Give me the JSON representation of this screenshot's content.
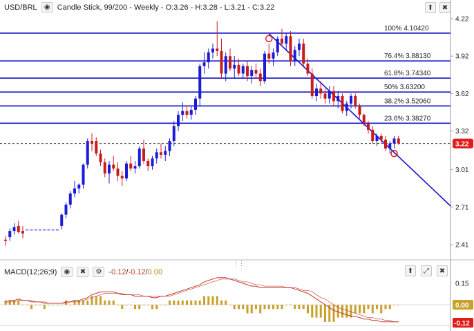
{
  "header": {
    "symbol": "USD/BRL",
    "info": "Candle Stick, 99/200 - Weekly - O:3.26 - H:3.28 - L:3.21 - C:3.22"
  },
  "macd": {
    "label": "MACD(12;26;9)",
    "v1": "-0.12",
    "v2": "-0.12",
    "v3": "0.00",
    "axis_ticks": [
      "0.15",
      "0.00",
      "-0.12"
    ],
    "badge_zero": "0.00",
    "badge_last": "-0.12",
    "colors": {
      "macd": "#c0392b",
      "signal": "#c0392b",
      "hist": "#c8a02a"
    }
  },
  "colors": {
    "up": "#1c1cd6",
    "down": "#c81c1c",
    "level": "#1414c8",
    "badge": "#e01c1c"
  },
  "chart_data": {
    "type": "candlestick",
    "y_ticks": [
      "4.22",
      "3.92",
      "3.62",
      "3.32",
      "3.01",
      "2.71",
      "2.41"
    ],
    "last_price": "3.22",
    "fib_levels": [
      {
        "pct": "100%",
        "value": "4.10420"
      },
      {
        "pct": "76.4%",
        "value": "3.88130"
      },
      {
        "pct": "61.8%",
        "value": "3.74340"
      },
      {
        "pct": "50%",
        "value": "3.63200"
      },
      {
        "pct": "38.2%",
        "value": "3.52060"
      },
      {
        "pct": "23.6%",
        "value": "3.38270"
      }
    ],
    "trendline": {
      "from": 4.1,
      "to": 2.72
    },
    "candles": [
      [
        2.45,
        2.48,
        2.4,
        2.44
      ],
      [
        2.47,
        2.54,
        2.44,
        2.52
      ],
      [
        2.52,
        2.58,
        2.49,
        2.55
      ],
      [
        2.56,
        2.6,
        2.5,
        2.51
      ],
      [
        2.52,
        2.56,
        2.46,
        2.5
      ],
      [
        2.53,
        2.53,
        2.53,
        2.53
      ],
      [
        2.53,
        2.53,
        2.53,
        2.53
      ],
      [
        2.53,
        2.53,
        2.53,
        2.53
      ],
      [
        2.53,
        2.53,
        2.53,
        2.53
      ],
      [
        2.53,
        2.53,
        2.53,
        2.53
      ],
      [
        2.53,
        2.53,
        2.53,
        2.53
      ],
      [
        2.53,
        2.53,
        2.53,
        2.53
      ],
      [
        2.53,
        2.53,
        2.53,
        2.53
      ],
      [
        2.56,
        2.66,
        2.53,
        2.65
      ],
      [
        2.65,
        2.75,
        2.62,
        2.73
      ],
      [
        2.73,
        2.84,
        2.7,
        2.82
      ],
      [
        2.82,
        2.92,
        2.79,
        2.86
      ],
      [
        2.86,
        2.9,
        2.82,
        2.89
      ],
      [
        2.89,
        3.06,
        2.86,
        3.05
      ],
      [
        3.05,
        3.26,
        3.02,
        3.24
      ],
      [
        3.24,
        3.3,
        3.16,
        3.22
      ],
      [
        3.24,
        3.27,
        3.12,
        3.14
      ],
      [
        3.14,
        3.17,
        3.04,
        3.07
      ],
      [
        3.07,
        3.1,
        2.95,
        2.98
      ],
      [
        2.98,
        3.08,
        2.9,
        3.05
      ],
      [
        3.05,
        3.12,
        3.0,
        3.02
      ],
      [
        3.02,
        3.07,
        2.92,
        2.96
      ],
      [
        2.96,
        3.0,
        2.88,
        2.94
      ],
      [
        2.94,
        3.08,
        2.92,
        3.06
      ],
      [
        3.06,
        3.12,
        3.0,
        3.02
      ],
      [
        3.02,
        3.08,
        2.98,
        3.04
      ],
      [
        3.04,
        3.2,
        3.02,
        3.18
      ],
      [
        3.18,
        3.25,
        3.06,
        3.08
      ],
      [
        3.08,
        3.1,
        3.0,
        3.04
      ],
      [
        3.04,
        3.12,
        3.01,
        3.1
      ],
      [
        3.1,
        3.18,
        3.06,
        3.15
      ],
      [
        3.15,
        3.22,
        3.1,
        3.13
      ],
      [
        3.13,
        3.2,
        3.08,
        3.16
      ],
      [
        3.16,
        3.26,
        3.12,
        3.24
      ],
      [
        3.24,
        3.4,
        3.2,
        3.36
      ],
      [
        3.36,
        3.48,
        3.32,
        3.45
      ],
      [
        3.45,
        3.55,
        3.4,
        3.48
      ],
      [
        3.48,
        3.52,
        3.42,
        3.45
      ],
      [
        3.45,
        3.52,
        3.41,
        3.49
      ],
      [
        3.49,
        3.6,
        3.45,
        3.58
      ],
      [
        3.58,
        3.86,
        3.52,
        3.84
      ],
      [
        3.84,
        3.95,
        3.78,
        3.87
      ],
      [
        3.87,
        3.98,
        3.82,
        3.95
      ],
      [
        3.95,
        4.02,
        3.9,
        3.98
      ],
      [
        3.98,
        4.2,
        3.92,
        3.96
      ],
      [
        3.96,
        4.06,
        3.74,
        3.78
      ],
      [
        3.78,
        3.95,
        3.72,
        3.92
      ],
      [
        3.92,
        3.98,
        3.8,
        3.82
      ],
      [
        3.82,
        3.92,
        3.74,
        3.85
      ],
      [
        3.85,
        3.9,
        3.76,
        3.78
      ],
      [
        3.78,
        3.86,
        3.74,
        3.84
      ],
      [
        3.84,
        3.88,
        3.72,
        3.76
      ],
      [
        3.76,
        3.84,
        3.7,
        3.81
      ],
      [
        3.81,
        3.86,
        3.74,
        3.78
      ],
      [
        3.78,
        3.82,
        3.68,
        3.72
      ],
      [
        3.72,
        3.96,
        3.7,
        3.94
      ],
      [
        3.94,
        4.02,
        3.86,
        3.9
      ],
      [
        3.9,
        3.98,
        3.84,
        3.95
      ],
      [
        3.95,
        4.08,
        3.92,
        4.06
      ],
      [
        4.06,
        4.14,
        4.0,
        4.02
      ],
      [
        4.02,
        4.1,
        3.96,
        4.08
      ],
      [
        4.08,
        4.12,
        3.84,
        3.88
      ],
      [
        3.88,
        4.0,
        3.84,
        3.97
      ],
      [
        3.97,
        4.06,
        3.92,
        4.02
      ],
      [
        4.02,
        4.06,
        3.84,
        3.86
      ],
      [
        3.86,
        3.9,
        3.76,
        3.78
      ],
      [
        3.78,
        3.82,
        3.58,
        3.6
      ],
      [
        3.6,
        3.7,
        3.56,
        3.66
      ],
      [
        3.66,
        3.72,
        3.58,
        3.62
      ],
      [
        3.62,
        3.66,
        3.54,
        3.58
      ],
      [
        3.58,
        3.68,
        3.54,
        3.64
      ],
      [
        3.64,
        3.68,
        3.52,
        3.56
      ],
      [
        3.56,
        3.64,
        3.5,
        3.6
      ],
      [
        3.6,
        3.62,
        3.46,
        3.48
      ],
      [
        3.48,
        3.56,
        3.44,
        3.54
      ],
      [
        3.54,
        3.62,
        3.5,
        3.6
      ],
      [
        3.6,
        3.62,
        3.5,
        3.52
      ],
      [
        3.52,
        3.54,
        3.42,
        3.45
      ],
      [
        3.45,
        3.46,
        3.36,
        3.38
      ],
      [
        3.38,
        3.4,
        3.3,
        3.33
      ],
      [
        3.33,
        3.36,
        3.22,
        3.24
      ],
      [
        3.24,
        3.3,
        3.2,
        3.28
      ],
      [
        3.28,
        3.3,
        3.22,
        3.25
      ],
      [
        3.25,
        3.28,
        3.16,
        3.18
      ],
      [
        3.18,
        3.24,
        3.14,
        3.22
      ],
      [
        3.22,
        3.28,
        3.18,
        3.26
      ],
      [
        3.26,
        3.28,
        3.21,
        3.22
      ]
    ],
    "macd_line": [
      0.02,
      0.03,
      0.03,
      0.04,
      0.03,
      0.03,
      0.02,
      0.02,
      0.02,
      0.01,
      0.01,
      0.01,
      0.01,
      0.01,
      0.02,
      0.02,
      0.03,
      0.03,
      0.04,
      0.05,
      0.07,
      0.08,
      0.09,
      0.09,
      0.09,
      0.09,
      0.08,
      0.07,
      0.07,
      0.07,
      0.06,
      0.06,
      0.06,
      0.06,
      0.05,
      0.05,
      0.06,
      0.06,
      0.07,
      0.08,
      0.09,
      0.1,
      0.11,
      0.12,
      0.13,
      0.14,
      0.16,
      0.17,
      0.18,
      0.19,
      0.19,
      0.19,
      0.18,
      0.17,
      0.16,
      0.15,
      0.14,
      0.13,
      0.13,
      0.12,
      0.12,
      0.12,
      0.12,
      0.12,
      0.12,
      0.12,
      0.12,
      0.11,
      0.1,
      0.09,
      0.08,
      0.06,
      0.04,
      0.02,
      0.0,
      -0.02,
      -0.04,
      -0.05,
      -0.06,
      -0.07,
      -0.08,
      -0.08,
      -0.09,
      -0.1,
      -0.1,
      -0.11,
      -0.11,
      -0.12,
      -0.12,
      -0.12,
      -0.12,
      -0.12
    ],
    "signal_line": [
      0.01,
      0.02,
      0.02,
      0.03,
      0.03,
      0.03,
      0.03,
      0.02,
      0.02,
      0.02,
      0.01,
      0.01,
      0.01,
      0.01,
      0.01,
      0.02,
      0.02,
      0.02,
      0.03,
      0.04,
      0.05,
      0.06,
      0.07,
      0.08,
      0.08,
      0.08,
      0.08,
      0.08,
      0.07,
      0.07,
      0.07,
      0.07,
      0.06,
      0.06,
      0.06,
      0.06,
      0.06,
      0.06,
      0.06,
      0.07,
      0.08,
      0.09,
      0.1,
      0.11,
      0.12,
      0.13,
      0.14,
      0.15,
      0.16,
      0.17,
      0.18,
      0.18,
      0.18,
      0.18,
      0.17,
      0.16,
      0.16,
      0.15,
      0.14,
      0.14,
      0.13,
      0.13,
      0.13,
      0.13,
      0.13,
      0.12,
      0.12,
      0.12,
      0.11,
      0.1,
      0.1,
      0.09,
      0.07,
      0.05,
      0.04,
      0.02,
      0.0,
      -0.02,
      -0.03,
      -0.04,
      -0.05,
      -0.06,
      -0.07,
      -0.08,
      -0.09,
      -0.09,
      -0.1,
      -0.1,
      -0.11,
      -0.11,
      -0.12,
      -0.12
    ]
  }
}
